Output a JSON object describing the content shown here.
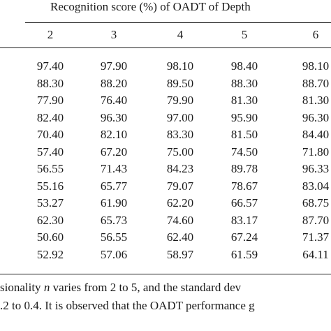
{
  "header": {
    "title": "Recognition score (%) of OADT of Depth",
    "columns": [
      "2",
      "3",
      "4",
      "5",
      "6"
    ]
  },
  "table": {
    "rows": [
      [
        "97.40",
        "97.90",
        "98.10",
        "98.40",
        "98.10"
      ],
      [
        "88.30",
        "88.20",
        "89.50",
        "88.30",
        "88.70"
      ],
      [
        "77.90",
        "76.40",
        "79.90",
        "81.30",
        "81.30"
      ],
      [
        "82.40",
        "96.30",
        "97.00",
        "95.90",
        "96.30"
      ],
      [
        "70.40",
        "82.10",
        "83.30",
        "81.50",
        "84.40"
      ],
      [
        "57.40",
        "67.20",
        "75.00",
        "74.50",
        "71.80"
      ],
      [
        "56.55",
        "71.43",
        "84.23",
        "89.78",
        "96.33"
      ],
      [
        "55.16",
        "65.77",
        "79.07",
        "78.67",
        "83.04"
      ],
      [
        "53.27",
        "61.90",
        "62.20",
        "66.57",
        "68.75"
      ],
      [
        "62.30",
        "65.73",
        "74.60",
        "83.17",
        "87.70"
      ],
      [
        "50.60",
        "56.55",
        "62.40",
        "67.24",
        "71.37"
      ],
      [
        "52.92",
        "57.06",
        "58.97",
        "61.59",
        "64.11"
      ]
    ]
  },
  "caption": {
    "lines": [
      {
        "before": "sionality ",
        "italic": "n",
        "after": " varies from 2 to 5, and the standard dev"
      },
      ".2 to 0.4. It is observed that the OADT performance g"
    ]
  }
}
